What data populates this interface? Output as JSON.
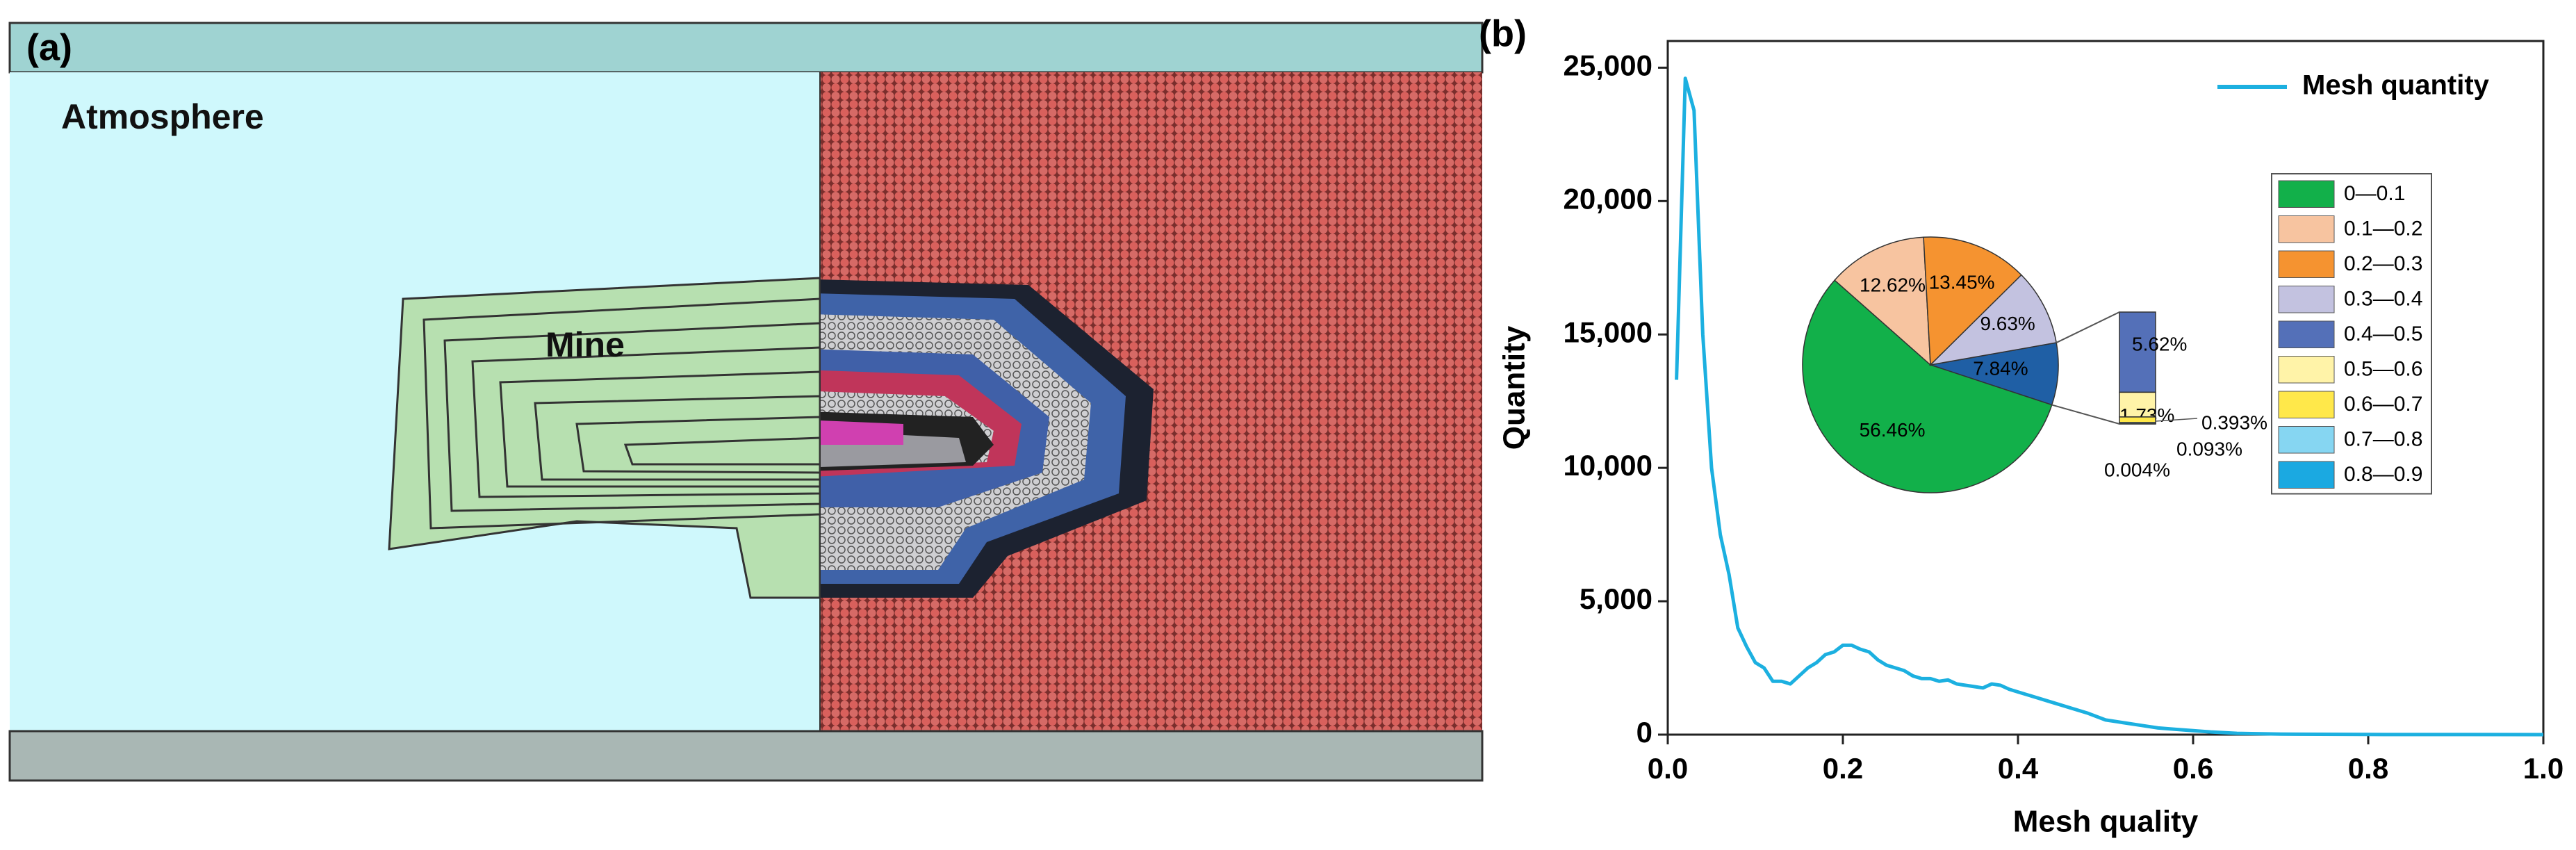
{
  "panel_a": {
    "label": "(a)",
    "atmosphere_label": "Atmosphere",
    "mine_label": "Mine"
  },
  "chart_data": [
    {
      "type": "line",
      "panel_label": "(b)",
      "x_label": "Mesh quality",
      "y_label": "Quantity",
      "x": [
        0.01,
        0.02,
        0.03,
        0.04,
        0.05,
        0.06,
        0.07,
        0.08,
        0.09,
        0.1,
        0.11,
        0.12,
        0.13,
        0.14,
        0.15,
        0.16,
        0.17,
        0.18,
        0.19,
        0.2,
        0.21,
        0.22,
        0.23,
        0.24,
        0.25,
        0.26,
        0.27,
        0.28,
        0.29,
        0.3,
        0.31,
        0.32,
        0.33,
        0.34,
        0.35,
        0.36,
        0.37,
        0.38,
        0.39,
        0.4,
        0.42,
        0.44,
        0.46,
        0.48,
        0.5,
        0.52,
        0.54,
        0.56,
        0.58,
        0.6,
        0.62,
        0.65,
        0.7,
        0.8,
        0.9,
        1.0
      ],
      "series": [
        {
          "name": "Mesh quantity",
          "color": "#1cb0e0",
          "values": [
            13300,
            24600,
            23400,
            15000,
            10000,
            7500,
            6000,
            4000,
            3300,
            2700,
            2500,
            2000,
            2000,
            1900,
            2200,
            2500,
            2700,
            3000,
            3100,
            3350,
            3350,
            3200,
            3100,
            2800,
            2600,
            2500,
            2400,
            2200,
            2100,
            2100,
            2000,
            2050,
            1900,
            1850,
            1800,
            1750,
            1900,
            1850,
            1700,
            1600,
            1400,
            1200,
            1000,
            800,
            550,
            450,
            350,
            250,
            200,
            150,
            100,
            50,
            20,
            5,
            2,
            0
          ]
        }
      ],
      "xlim": [
        0,
        1
      ],
      "xticks": [
        {
          "value": 0,
          "label": "0.0"
        },
        0.2,
        0.4,
        0.6,
        0.8,
        {
          "value": 1,
          "label": "1.0"
        }
      ],
      "ylim": [
        0,
        26000
      ],
      "yticks": [
        0,
        {
          "value": 5000,
          "label": "5,000"
        },
        {
          "value": 10000,
          "label": "10,000"
        },
        {
          "value": 15000,
          "label": "15,000"
        },
        {
          "value": 20000,
          "label": "20,000"
        },
        {
          "value": 25000,
          "label": "25,000"
        }
      ],
      "legend": "upper right"
    },
    {
      "type": "pie",
      "categories": [
        "0—0.1",
        "0.1—0.2",
        "0.2—0.3",
        "0.3—0.4",
        "0.4—0.5",
        "0.5—0.6",
        "0.6—0.7",
        "0.7—0.8",
        "0.8—0.9"
      ],
      "values": [
        56.46,
        12.62,
        13.45,
        9.63,
        5.62,
        1.73,
        0.393,
        0.093,
        0.004
      ],
      "value_labels": [
        "56.46%",
        "12.62%",
        "13.45%",
        "9.63%",
        "5.62%",
        "1.73%",
        "0.393%",
        "0.093%",
        "0.004%"
      ],
      "colors": [
        "#12b04a",
        "#f7c4a0",
        "#f59330",
        "#c3c2e0",
        "#5470b8",
        "#fff3a8",
        "#ffe84a",
        "#86d6f2",
        "#1ba9e1"
      ],
      "other": {
        "value": 7.84,
        "label": "7.84%",
        "color": "#1f5fa5"
      }
    }
  ]
}
